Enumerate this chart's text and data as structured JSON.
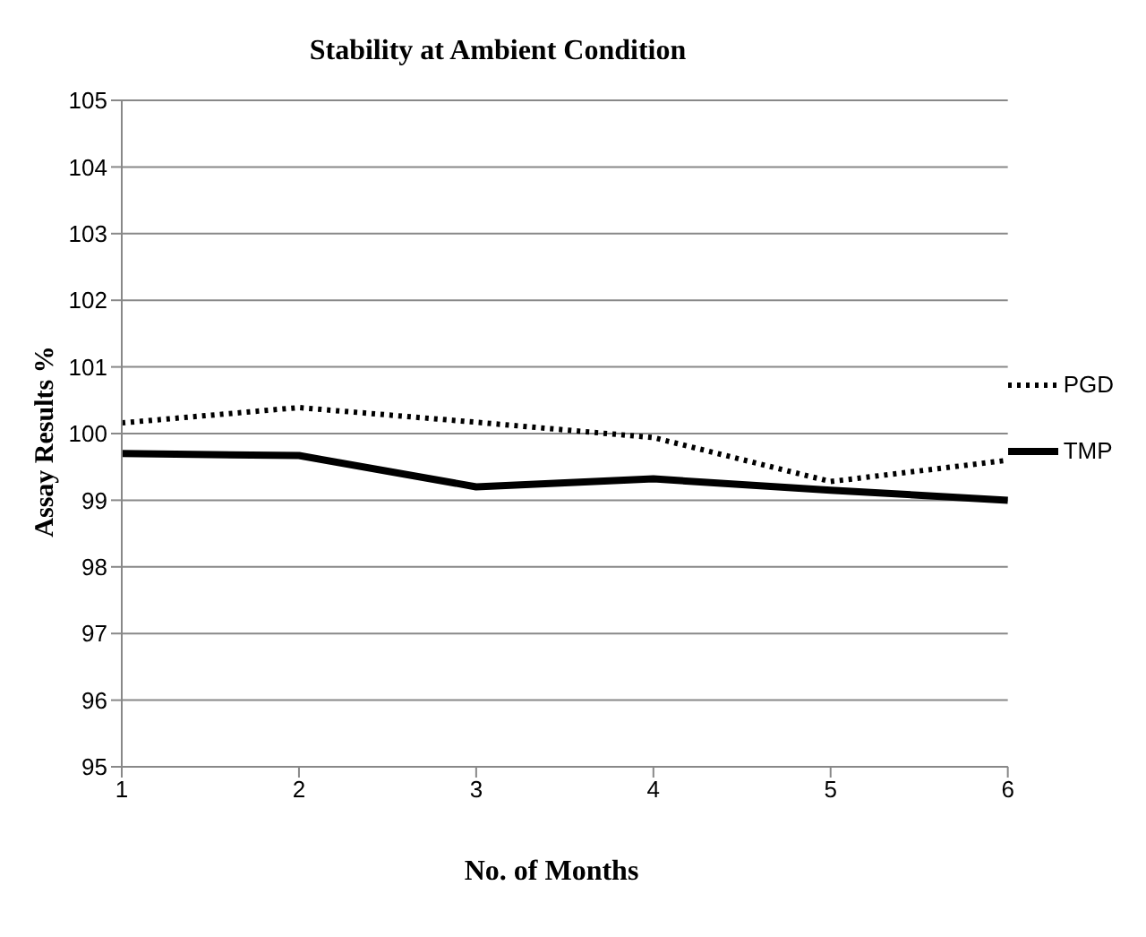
{
  "chart_data": {
    "type": "line",
    "title": "Stability at Ambient Condition",
    "xlabel": "No. of Months",
    "ylabel": "Assay Results %",
    "categories": [
      "1",
      "2",
      "3",
      "4",
      "5",
      "6"
    ],
    "series": [
      {
        "name": "PGD",
        "color": "#000000",
        "line_style": "dotted",
        "values": [
          100.16,
          100.39,
          100.17,
          99.94,
          99.28,
          99.6
        ]
      },
      {
        "name": "TMP",
        "color": "#000000",
        "line_style": "solid",
        "values": [
          99.7,
          99.67,
          99.2,
          99.32,
          99.15,
          99.0
        ]
      }
    ],
    "ylim": [
      95,
      105
    ],
    "yticks": [
      95,
      96,
      97,
      98,
      99,
      100,
      101,
      102,
      103,
      104,
      105
    ],
    "grid": "y",
    "legend": "right",
    "marker": "none"
  }
}
